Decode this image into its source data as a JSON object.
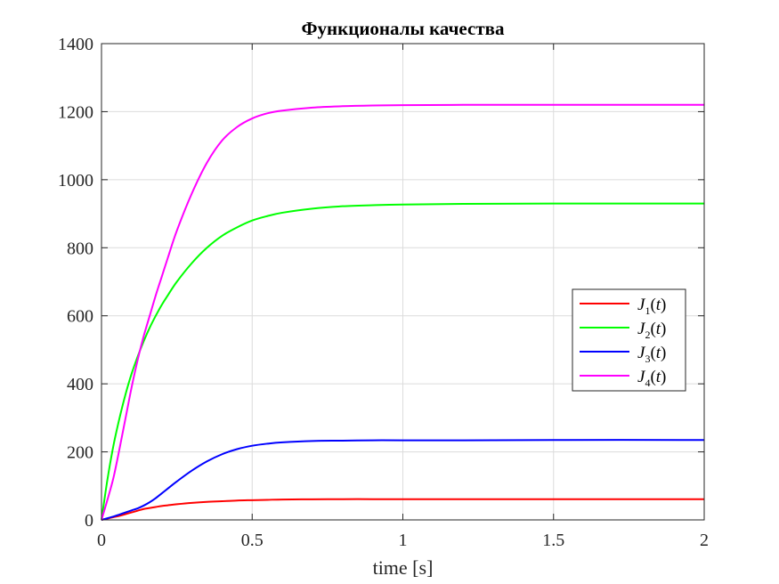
{
  "chart_data": {
    "type": "line",
    "title": "Функционалы качества",
    "xlabel": "time [s]",
    "ylabel": "",
    "xlim": [
      0,
      2
    ],
    "ylim": [
      0,
      1400
    ],
    "xticks": [
      0,
      0.5,
      1,
      1.5,
      2
    ],
    "xtick_labels": [
      "0",
      "0.5",
      "1",
      "1.5",
      "2"
    ],
    "yticks": [
      0,
      200,
      400,
      600,
      800,
      1000,
      1200,
      1400
    ],
    "ytick_labels": [
      "0",
      "200",
      "400",
      "600",
      "800",
      "1000",
      "1200",
      "1400"
    ],
    "grid": true,
    "legend_position": "right",
    "x": [
      0,
      0.02,
      0.04,
      0.06,
      0.08,
      0.1,
      0.12,
      0.14,
      0.16,
      0.18,
      0.2,
      0.22,
      0.25,
      0.3,
      0.35,
      0.4,
      0.45,
      0.5,
      0.55,
      0.6,
      0.7,
      0.8,
      0.9,
      1.0,
      1.2,
      1.5,
      2.0
    ],
    "series": [
      {
        "name": "J1(t)",
        "label_base": "J",
        "label_sub": "1",
        "label_arg": "(t)",
        "color": "#ff0000",
        "values": [
          0,
          4,
          8,
          12,
          17,
          22,
          27,
          32,
          35,
          38,
          41,
          43,
          46,
          50,
          53,
          55,
          57,
          58,
          59,
          60,
          60.5,
          61,
          61,
          61,
          61,
          61,
          61
        ]
      },
      {
        "name": "J2(t)",
        "label_base": "J",
        "label_sub": "2",
        "label_arg": "(t)",
        "color": "#00ff00",
        "values": [
          0,
          120,
          220,
          300,
          370,
          430,
          480,
          525,
          565,
          600,
          632,
          660,
          700,
          755,
          800,
          835,
          860,
          880,
          893,
          903,
          915,
          922,
          925,
          927,
          929,
          930,
          930
        ]
      },
      {
        "name": "J3(t)",
        "label_base": "J",
        "label_sub": "3",
        "label_arg": "(t)",
        "color": "#0000ff",
        "values": [
          0,
          5,
          10,
          16,
          22,
          28,
          34,
          42,
          52,
          64,
          78,
          92,
          113,
          145,
          172,
          193,
          208,
          218,
          224,
          228,
          232,
          233,
          234,
          234,
          234,
          235,
          235
        ]
      },
      {
        "name": "J4(t)",
        "label_base": "J",
        "label_sub": "4",
        "label_arg": "(t)",
        "color": "#ff00ff",
        "values": [
          0,
          60,
          125,
          210,
          300,
          390,
          470,
          540,
          600,
          660,
          715,
          770,
          850,
          960,
          1050,
          1115,
          1155,
          1180,
          1195,
          1203,
          1212,
          1216,
          1218,
          1219,
          1220,
          1220,
          1220
        ]
      }
    ]
  }
}
